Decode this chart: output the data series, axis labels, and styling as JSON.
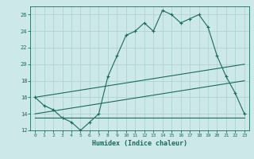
{
  "title": "",
  "xlabel": "Humidex (Indice chaleur)",
  "bg_color": "#cce8e8",
  "grid_color": "#aacfcf",
  "line_color": "#1a6b5a",
  "xlim": [
    -0.5,
    23.5
  ],
  "ylim": [
    12,
    27
  ],
  "xticks": [
    0,
    1,
    2,
    3,
    4,
    5,
    6,
    7,
    8,
    9,
    10,
    11,
    12,
    13,
    14,
    15,
    16,
    17,
    18,
    19,
    20,
    21,
    22,
    23
  ],
  "yticks": [
    12,
    14,
    16,
    18,
    20,
    22,
    24,
    26
  ],
  "main_line": {
    "x": [
      0,
      1,
      2,
      3,
      4,
      5,
      6,
      7,
      8,
      9,
      10,
      11,
      12,
      13,
      14,
      15,
      16,
      17,
      18,
      19,
      20,
      21,
      22,
      23
    ],
    "y": [
      16,
      15,
      14.5,
      13.5,
      13,
      12,
      13,
      14,
      18.5,
      21,
      23.5,
      24,
      25,
      24,
      26.5,
      26,
      25,
      25.5,
      26,
      24.5,
      21,
      18.5,
      16.5,
      14
    ]
  },
  "line2": {
    "x": [
      0,
      23
    ],
    "y": [
      16,
      20
    ]
  },
  "line3": {
    "x": [
      0,
      23
    ],
    "y": [
      14,
      18
    ]
  },
  "line4": {
    "x": [
      0,
      23
    ],
    "y": [
      13.5,
      13.5
    ]
  }
}
